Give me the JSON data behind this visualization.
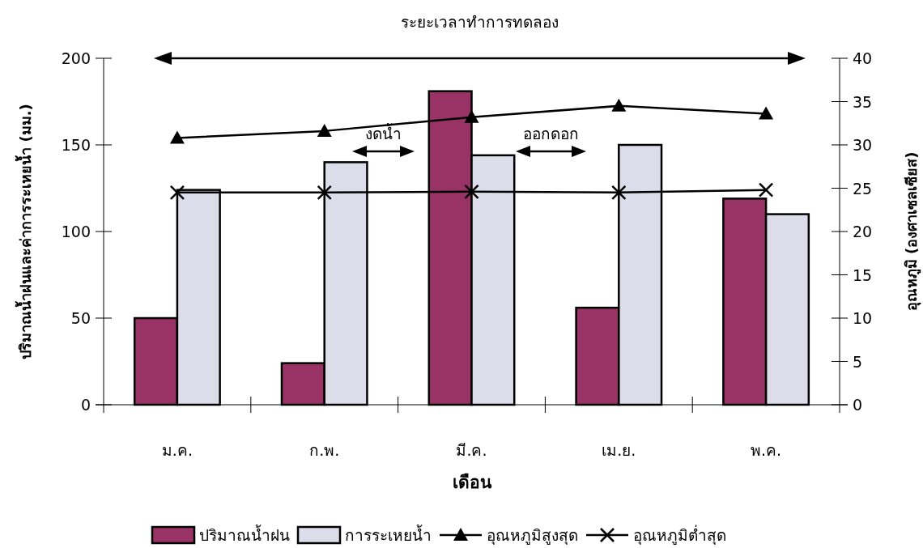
{
  "chart_data": {
    "type": "bar",
    "categories": [
      "ม.ค.",
      "ก.พ.",
      "มี.ค.",
      "เม.ย.",
      "พ.ค."
    ],
    "xlabel": "เดือน",
    "ylabel": "ปริมาณน้ำฝนและค่าการระเหยน้ำ (มม.)",
    "y2label": "อุณหภูมิ (องศาเซลเซียส)",
    "ylim": [
      0,
      200
    ],
    "yticks": [
      0,
      50,
      100,
      150,
      200
    ],
    "y2lim": [
      0,
      40
    ],
    "y2ticks": [
      0,
      5,
      10,
      15,
      20,
      25,
      30,
      35,
      40
    ],
    "series": [
      {
        "name": "ปริมาณน้ำฝน",
        "color": "#993366",
        "values": [
          50,
          24,
          181,
          56,
          119
        ]
      },
      {
        "name": "การระเหยน้ำ",
        "color": "#dcdcea",
        "values": [
          124,
          140,
          144,
          150,
          110
        ]
      },
      {
        "name": "อุณหภูมิสูงสุด",
        "type": "line",
        "axis": "y2",
        "marker": "triangle",
        "color": "#000000",
        "values": [
          30.8,
          31.6,
          33.2,
          34.5,
          33.6
        ]
      },
      {
        "name": "อุณหภูมิต่ำสุด",
        "type": "line",
        "axis": "y2",
        "marker": "cross",
        "color": "#000000",
        "values": [
          24.5,
          24.5,
          24.6,
          24.5,
          24.8
        ]
      }
    ],
    "annotations": [
      "ระยะเวลาทำการทดลอง",
      "งดน้ำ",
      "ออกดอก"
    ],
    "legend": "bottom"
  }
}
